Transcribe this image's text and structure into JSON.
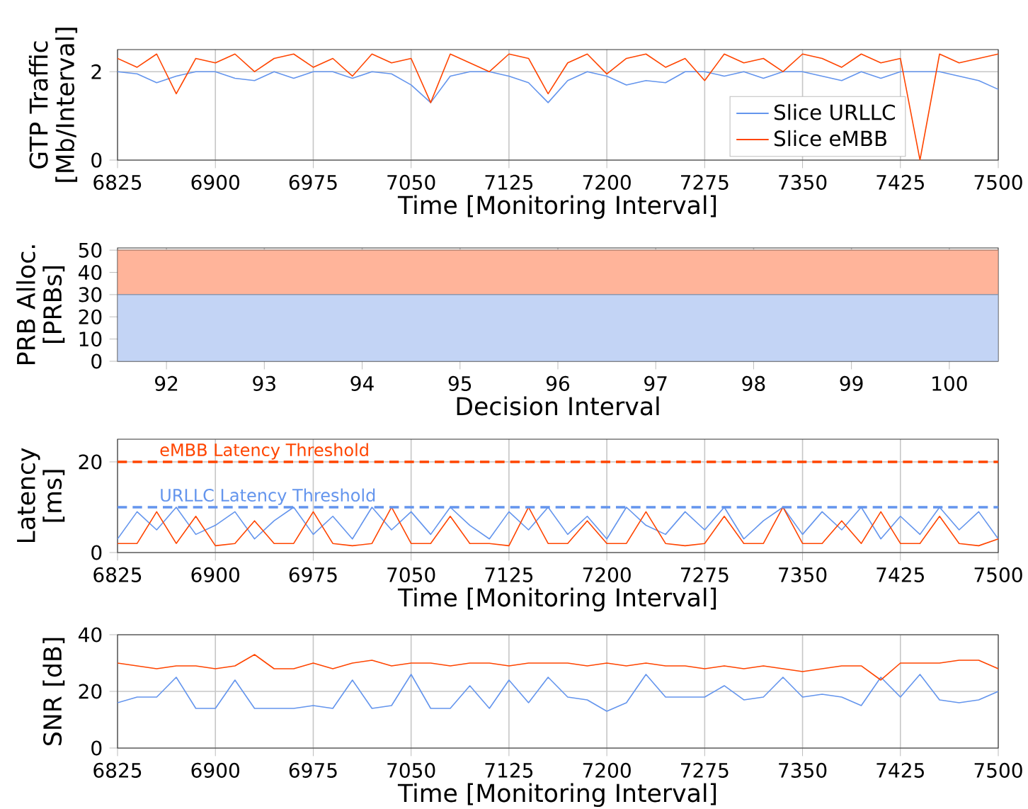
{
  "chart_data": [
    {
      "type": "line",
      "xlabel": "Time [Monitoring Interval]",
      "ylabel": "GTP Traffic [Mb/Interval]",
      "x": [
        6825,
        6840,
        6855,
        6870,
        6885,
        6900,
        6915,
        6930,
        6945,
        6960,
        6975,
        6990,
        7005,
        7020,
        7035,
        7050,
        7065,
        7080,
        7095,
        7110,
        7125,
        7140,
        7155,
        7170,
        7185,
        7200,
        7215,
        7230,
        7245,
        7260,
        7275,
        7290,
        7305,
        7320,
        7335,
        7350,
        7365,
        7380,
        7395,
        7410,
        7425,
        7440,
        7455,
        7470,
        7485,
        7500
      ],
      "series": [
        {
          "name": "Slice URLLC",
          "color": "#6495ed",
          "values": [
            2.0,
            1.95,
            1.75,
            1.9,
            2.0,
            2.0,
            1.85,
            1.8,
            2.0,
            1.85,
            2.0,
            2.0,
            1.85,
            2.0,
            1.95,
            1.7,
            1.3,
            1.9,
            2.0,
            2.0,
            1.9,
            1.75,
            1.3,
            1.8,
            2.0,
            1.9,
            1.7,
            1.8,
            1.75,
            2.0,
            2.0,
            1.9,
            2.0,
            1.85,
            2.0,
            2.0,
            1.9,
            1.8,
            2.0,
            1.85,
            2.0,
            2.0,
            2.0,
            1.9,
            1.8,
            1.6
          ]
        },
        {
          "name": "Slice eMBB",
          "color": "#ff4500",
          "values": [
            2.3,
            2.1,
            2.4,
            1.5,
            2.3,
            2.2,
            2.4,
            2.0,
            2.3,
            2.4,
            2.1,
            2.3,
            1.9,
            2.4,
            2.2,
            2.3,
            1.3,
            2.4,
            2.2,
            2.0,
            2.4,
            2.3,
            1.5,
            2.2,
            2.4,
            1.95,
            2.3,
            2.4,
            2.1,
            2.3,
            1.8,
            2.4,
            2.2,
            2.3,
            2.0,
            2.4,
            2.3,
            2.1,
            2.4,
            2.2,
            2.3,
            0.0,
            2.4,
            2.2,
            2.3,
            2.4
          ]
        }
      ],
      "xlim": [
        6825,
        7500
      ],
      "xticks": [
        6825,
        6900,
        6975,
        7050,
        7125,
        7200,
        7275,
        7350,
        7425,
        7500
      ],
      "ylim": [
        0,
        2.5
      ],
      "yticks": [
        0,
        2
      ],
      "grid": true,
      "legend": "bottom right"
    },
    {
      "type": "area",
      "stacked": true,
      "xlabel": "Decision Interval",
      "ylabel": "PRB Alloc. [PRBs]",
      "x": [
        91.5,
        100.5
      ],
      "series": [
        {
          "color": "#c3d4f5",
          "values": [
            30,
            30
          ]
        },
        {
          "color": "#ffb49a",
          "values": [
            20,
            20
          ]
        }
      ],
      "xlim": [
        91.5,
        100.5
      ],
      "xticks": [
        92,
        93,
        94,
        95,
        96,
        97,
        98,
        99,
        100
      ],
      "ylim": [
        0,
        51
      ],
      "yticks": [
        0,
        10,
        20,
        30,
        40,
        50
      ],
      "grid": true
    },
    {
      "type": "line",
      "xlabel": "Time [Monitoring Interval]",
      "ylabel": "Latency [ms]",
      "x": [
        6825,
        6840,
        6855,
        6870,
        6885,
        6900,
        6915,
        6930,
        6945,
        6960,
        6975,
        6990,
        7005,
        7020,
        7035,
        7050,
        7065,
        7080,
        7095,
        7110,
        7125,
        7140,
        7155,
        7170,
        7185,
        7200,
        7215,
        7230,
        7245,
        7260,
        7275,
        7290,
        7305,
        7320,
        7335,
        7350,
        7365,
        7380,
        7395,
        7410,
        7425,
        7440,
        7455,
        7470,
        7485,
        7500
      ],
      "series": [
        {
          "color": "#6495ed",
          "values": [
            3,
            9,
            5,
            10,
            4,
            6,
            9,
            3,
            7,
            10,
            4,
            8,
            3,
            10,
            5,
            9,
            4,
            10,
            6,
            3,
            9,
            5,
            10,
            4,
            8,
            3,
            10,
            6,
            4,
            9,
            5,
            10,
            3,
            7,
            10,
            4,
            9,
            5,
            10,
            3,
            8,
            4,
            10,
            5,
            9,
            3
          ]
        },
        {
          "color": "#ff4500",
          "values": [
            2,
            2,
            9,
            2,
            8,
            1.5,
            2,
            7,
            2,
            2,
            9,
            2,
            1.5,
            2,
            10,
            2,
            2,
            8,
            2,
            2,
            1.5,
            10,
            2,
            2,
            7,
            2,
            2,
            9,
            2,
            1.5,
            2,
            8,
            2,
            2,
            10,
            2,
            2,
            7,
            2,
            9,
            2,
            2,
            8,
            2,
            1.5,
            3
          ]
        }
      ],
      "ref_lines": [
        {
          "axis": "y",
          "value": 20,
          "label": "eMBB Latency Threshold",
          "color": "#ff4500",
          "line_style": "dashed"
        },
        {
          "axis": "y",
          "value": 10,
          "label": "URLLC Latency Threshold",
          "color": "#6495ed",
          "line_style": "dashed"
        }
      ],
      "xlim": [
        6825,
        7500
      ],
      "xticks": [
        6825,
        6900,
        6975,
        7050,
        7125,
        7200,
        7275,
        7350,
        7425,
        7500
      ],
      "ylim": [
        0,
        25
      ],
      "yticks": [
        0,
        20
      ],
      "grid": true
    },
    {
      "type": "line",
      "xlabel": "Time [Monitoring Interval]",
      "ylabel": "SNR [dB]",
      "x": [
        6825,
        6840,
        6855,
        6870,
        6885,
        6900,
        6915,
        6930,
        6945,
        6960,
        6975,
        6990,
        7005,
        7020,
        7035,
        7050,
        7065,
        7080,
        7095,
        7110,
        7125,
        7140,
        7155,
        7170,
        7185,
        7200,
        7215,
        7230,
        7245,
        7260,
        7275,
        7290,
        7305,
        7320,
        7335,
        7350,
        7365,
        7380,
        7395,
        7410,
        7425,
        7440,
        7455,
        7470,
        7485,
        7500
      ],
      "series": [
        {
          "color": "#6495ed",
          "values": [
            16,
            18,
            18,
            25,
            14,
            14,
            24,
            14,
            14,
            14,
            15,
            14,
            24,
            14,
            15,
            26,
            14,
            14,
            22,
            14,
            24,
            16,
            25,
            18,
            17,
            13,
            16,
            26,
            18,
            18,
            18,
            22,
            17,
            18,
            25,
            18,
            19,
            18,
            15,
            25,
            18,
            26,
            17,
            16,
            17,
            20
          ]
        },
        {
          "color": "#ff4500",
          "values": [
            30,
            29,
            28,
            29,
            29,
            28,
            29,
            33,
            28,
            28,
            30,
            28,
            30,
            31,
            29,
            30,
            30,
            29,
            30,
            30,
            29,
            30,
            30,
            30,
            29,
            30,
            29,
            30,
            29,
            29,
            28,
            29,
            28,
            29,
            28,
            27,
            28,
            29,
            29,
            24,
            30,
            30,
            30,
            31,
            31,
            28
          ]
        }
      ],
      "xlim": [
        6825,
        7500
      ],
      "xticks": [
        6825,
        6900,
        6975,
        7050,
        7125,
        7200,
        7275,
        7350,
        7425,
        7500
      ],
      "ylim": [
        0,
        40
      ],
      "yticks": [
        0,
        20,
        40
      ],
      "grid": true
    }
  ]
}
